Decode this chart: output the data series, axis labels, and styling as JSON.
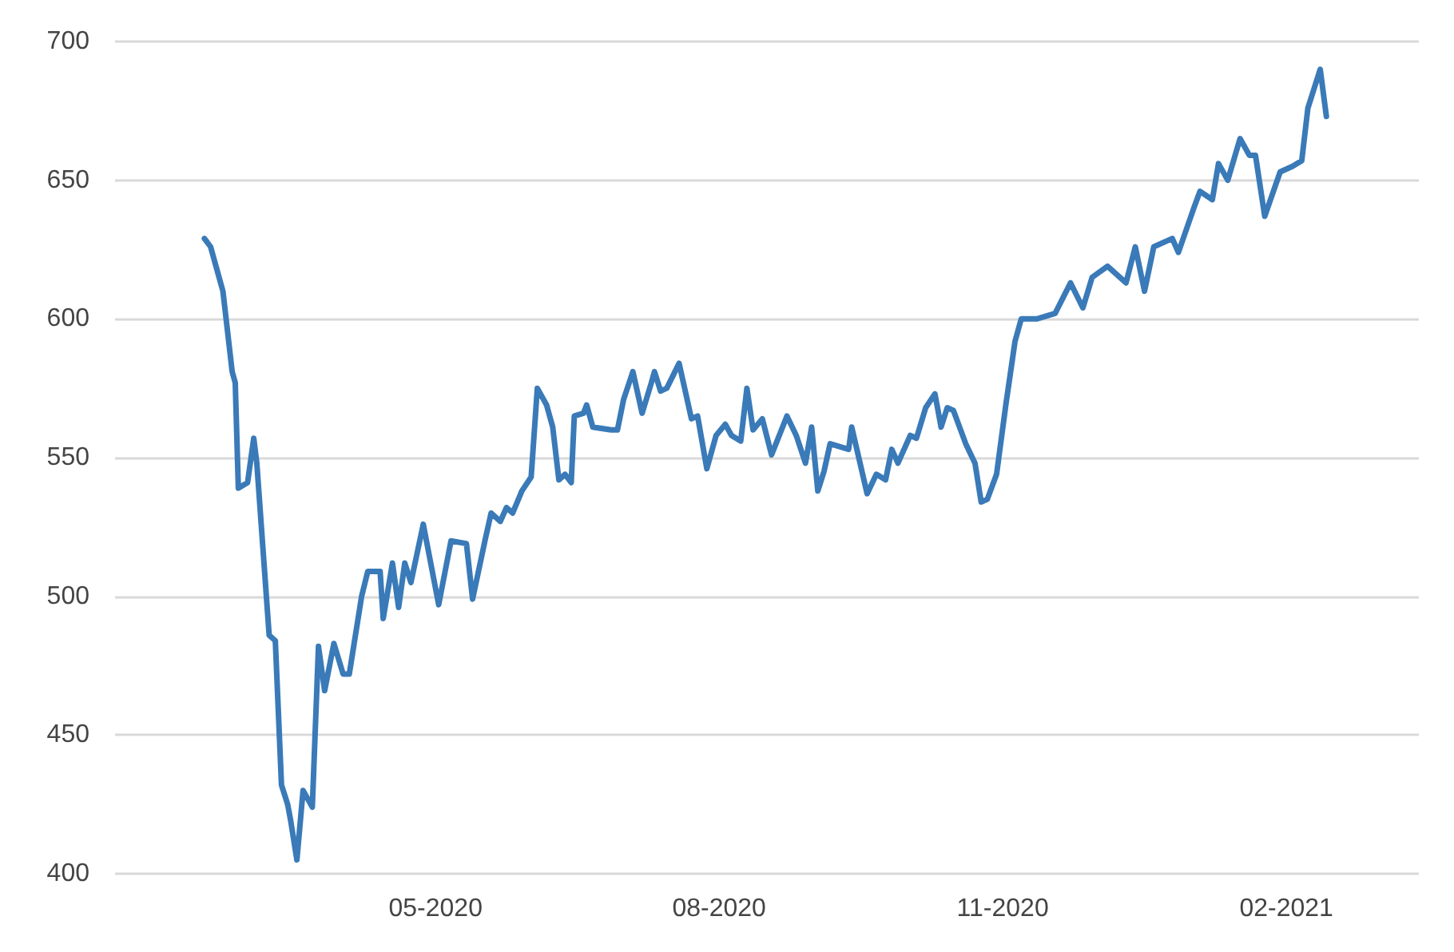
{
  "chart_data": {
    "type": "line",
    "x": [
      "2020-02-16",
      "2020-02-18",
      "2020-02-22",
      "2020-02-25",
      "2020-02-26",
      "2020-02-27",
      "2020-03-01",
      "2020-03-03",
      "2020-03-04",
      "2020-03-08",
      "2020-03-10",
      "2020-03-12",
      "2020-03-14",
      "2020-03-15",
      "2020-03-17",
      "2020-03-19",
      "2020-03-22",
      "2020-03-24",
      "2020-03-26",
      "2020-03-29",
      "2020-04-01",
      "2020-04-03",
      "2020-04-07",
      "2020-04-09",
      "2020-04-13",
      "2020-04-14",
      "2020-04-17",
      "2020-04-19",
      "2020-04-21",
      "2020-04-23",
      "2020-04-27",
      "2020-05-02",
      "2020-05-06",
      "2020-05-11",
      "2020-05-13",
      "2020-05-17",
      "2020-05-19",
      "2020-05-22",
      "2020-05-24",
      "2020-05-26",
      "2020-05-29",
      "2020-06-01",
      "2020-06-03",
      "2020-06-06",
      "2020-06-08",
      "2020-06-10",
      "2020-06-12",
      "2020-06-14",
      "2020-06-15",
      "2020-06-18",
      "2020-06-19",
      "2020-06-21",
      "2020-06-27",
      "2020-06-29",
      "2020-07-01",
      "2020-07-04",
      "2020-07-07",
      "2020-07-10",
      "2020-07-11",
      "2020-07-13",
      "2020-07-15",
      "2020-07-19",
      "2020-07-23",
      "2020-07-25",
      "2020-07-28",
      "2020-07-31",
      "2020-08-03",
      "2020-08-05",
      "2020-08-08",
      "2020-08-10",
      "2020-08-12",
      "2020-08-15",
      "2020-08-18",
      "2020-08-23",
      "2020-08-26",
      "2020-08-29",
      "2020-08-31",
      "2020-09-02",
      "2020-09-04",
      "2020-09-06",
      "2020-09-12",
      "2020-09-13",
      "2020-09-18",
      "2020-09-21",
      "2020-09-24",
      "2020-09-26",
      "2020-09-28",
      "2020-10-02",
      "2020-10-04",
      "2020-10-07",
      "2020-10-10",
      "2020-10-12",
      "2020-10-14",
      "2020-10-16",
      "2020-10-20",
      "2020-10-23",
      "2020-10-25",
      "2020-10-27",
      "2020-10-30",
      "2020-11-02",
      "2020-11-05",
      "2020-11-07",
      "2020-11-12",
      "2020-11-18",
      "2020-11-23",
      "2020-11-27",
      "2020-11-30",
      "2020-12-05",
      "2020-12-11",
      "2020-12-14",
      "2020-12-17",
      "2020-12-20",
      "2020-12-26",
      "2020-12-28",
      "2021-01-02",
      "2021-01-04",
      "2021-01-08",
      "2021-01-10",
      "2021-01-13",
      "2021-01-17",
      "2021-01-20",
      "2021-01-22",
      "2021-01-25",
      "2021-01-30",
      "2021-02-03",
      "2021-02-06",
      "2021-02-08",
      "2021-02-12",
      "2021-02-14"
    ],
    "series": [
      {
        "color": "#3a7ab8",
        "values": [
          629,
          626,
          610,
          581,
          577,
          539,
          541,
          557,
          548,
          486,
          484,
          432,
          425,
          419,
          405,
          430,
          424,
          482,
          466,
          483,
          472,
          472,
          500,
          509,
          509,
          492,
          512,
          496,
          512,
          505,
          526,
          497,
          520,
          519,
          499,
          520,
          530,
          527,
          532,
          530,
          538,
          543,
          575,
          569,
          561,
          542,
          544,
          541,
          565,
          566,
          569,
          561,
          560,
          560,
          571,
          581,
          566,
          577,
          581,
          574,
          575,
          584,
          564,
          565,
          546,
          558,
          562,
          558,
          556,
          575,
          560,
          564,
          551,
          565,
          558,
          548,
          561,
          538,
          545,
          555,
          553,
          561,
          537,
          544,
          542,
          553,
          548,
          558,
          557,
          568,
          573,
          561,
          568,
          567,
          555,
          548,
          534,
          535,
          544,
          569,
          592,
          600,
          600,
          602,
          613,
          604,
          615,
          619,
          613,
          626,
          610,
          626,
          629,
          624,
          640,
          646,
          643,
          656,
          650,
          665,
          659,
          659,
          637,
          653,
          655,
          657,
          676,
          690,
          673
        ]
      }
    ],
    "xlim": [
      "2020-01-18",
      "2021-03-16"
    ],
    "xticks": [
      {
        "value": "2020-05-01",
        "label": "05-2020"
      },
      {
        "value": "2020-08-01",
        "label": "08-2020"
      },
      {
        "value": "2020-11-01",
        "label": "11-2020"
      },
      {
        "value": "2021-02-01",
        "label": "02-2021"
      }
    ],
    "ylim": [
      400,
      700
    ],
    "yticks": [
      400,
      450,
      500,
      550,
      600,
      650,
      700
    ],
    "grid": "y",
    "marker": "none",
    "line_style": "solid"
  }
}
